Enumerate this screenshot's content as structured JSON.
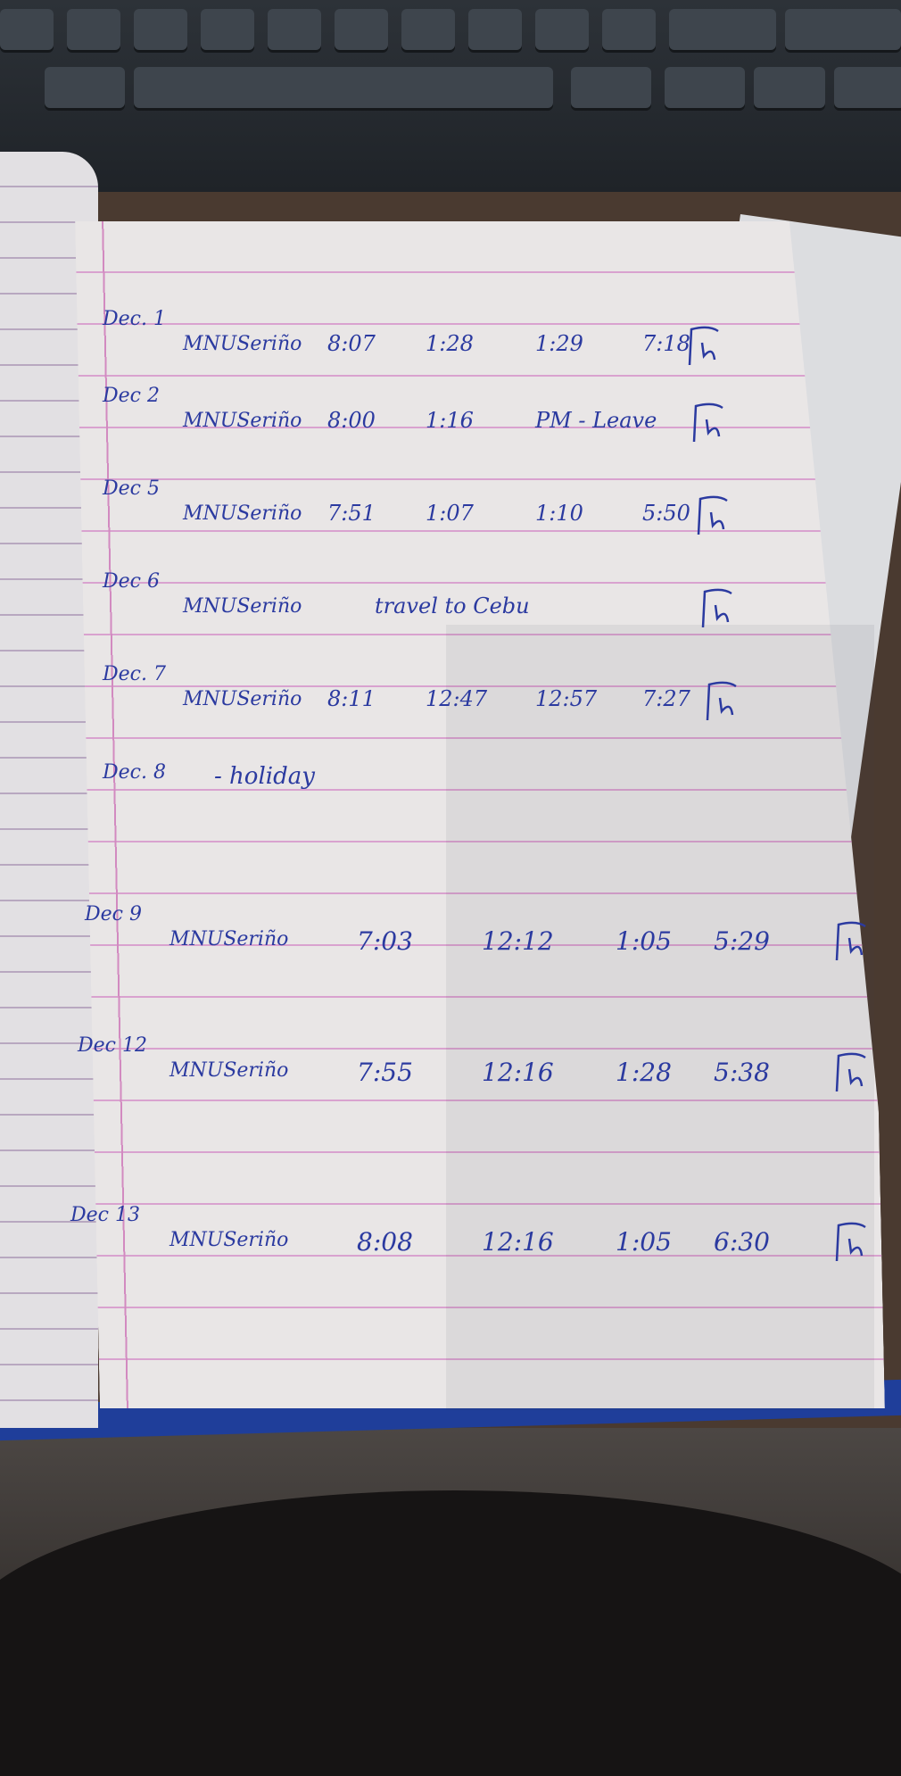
{
  "log": {
    "rows": [
      {
        "date": "Dec. 1",
        "name": "MNUSeriño",
        "entries": [
          "8:07",
          "1:28",
          "1:29",
          "7:18"
        ]
      },
      {
        "date": "Dec 2",
        "name": "MNUSeriño",
        "entries": [
          "8:00",
          "1:16",
          "PM - Leave"
        ]
      },
      {
        "date": "Dec 5",
        "name": "MNUSeriño",
        "entries": [
          "7:51",
          "1:07",
          "1:10",
          "5:50"
        ]
      },
      {
        "date": "Dec 6",
        "name": "MNUSeriño",
        "entries": [
          "travel to Cebu"
        ]
      },
      {
        "date": "Dec. 7",
        "name": "MNUSeriño",
        "entries": [
          "8:11",
          "12:47",
          "12:57",
          "7:27"
        ]
      },
      {
        "date": "Dec. 8",
        "name": "- holiday",
        "entries": []
      },
      {
        "date": "Dec 9",
        "name": "MNUSeriño",
        "entries": [
          "7:03",
          "12:12",
          "1:05",
          "5:29"
        ]
      },
      {
        "date": "Dec 12",
        "name": "MNUSeriño",
        "entries": [
          "7:55",
          "12:16",
          "1:28",
          "5:38"
        ]
      },
      {
        "date": "Dec 13",
        "name": "MNUSeriño",
        "entries": [
          "8:08",
          "12:16",
          "1:05",
          "6:30"
        ]
      }
    ]
  }
}
